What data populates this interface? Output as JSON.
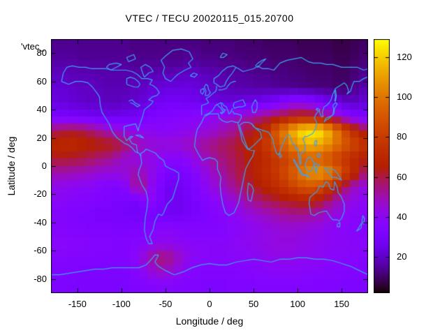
{
  "chart_data": {
    "type": "heatmap",
    "title": "VTEC / TECU 20020115_015.20700",
    "xlabel": "Longitude / deg",
    "ylabel": "Latitude / deg",
    "key_text": "'vtec_",
    "x_range": [
      -180,
      180
    ],
    "y_range": [
      -90,
      90
    ],
    "xticks": [
      -150,
      -100,
      -50,
      0,
      50,
      100,
      150
    ],
    "yticks": [
      80,
      60,
      40,
      20,
      0,
      -20,
      -40,
      -60,
      -80
    ],
    "grid_on": false,
    "legend_position": "top-left-truncated",
    "colorbar": {
      "ticks": [
        20,
        40,
        60,
        80,
        100,
        120
      ],
      "range": [
        2,
        129
      ],
      "palette": "gnuplot pm3d rgbformulae 7,5,15 (black-purple-red-orange-yellow)"
    },
    "coastline_color": "#3da2f0",
    "units": "TECU",
    "grid": {
      "lon_centers_start": -175,
      "lon_step": 10,
      "lat_centers_start": 85,
      "lat_step": -10,
      "values": [
        [
          14,
          14,
          14,
          14,
          14,
          14,
          14,
          14,
          14,
          13,
          13,
          13,
          13,
          13,
          13,
          13,
          13,
          12,
          12,
          12,
          12,
          11,
          11,
          11,
          10,
          10,
          10,
          10,
          9,
          9,
          9,
          9,
          8,
          8,
          9,
          10
        ],
        [
          16,
          16,
          16,
          15,
          15,
          15,
          15,
          15,
          15,
          14,
          14,
          14,
          14,
          14,
          14,
          15,
          15,
          14,
          14,
          13,
          13,
          13,
          12,
          12,
          12,
          11,
          11,
          11,
          10,
          10,
          10,
          10,
          9,
          9,
          10,
          12
        ],
        [
          19,
          19,
          18,
          18,
          18,
          17,
          17,
          17,
          17,
          17,
          17,
          18,
          18,
          18,
          19,
          20,
          20,
          19,
          18,
          17,
          16,
          16,
          15,
          14,
          14,
          13,
          13,
          12,
          12,
          11,
          11,
          11,
          10,
          10,
          12,
          14
        ],
        [
          22,
          22,
          21,
          20,
          20,
          19,
          18,
          18,
          18,
          19,
          20,
          22,
          23,
          24,
          24,
          24,
          23,
          21,
          20,
          19,
          18,
          17,
          17,
          16,
          16,
          15,
          14,
          14,
          13,
          13,
          12,
          12,
          11,
          11,
          14,
          17
        ],
        [
          24,
          23,
          22,
          21,
          20,
          20,
          19,
          19,
          20,
          21,
          23,
          26,
          28,
          29,
          29,
          28,
          27,
          25,
          24,
          23,
          23,
          24,
          25,
          27,
          29,
          32,
          36,
          40,
          40,
          37,
          33,
          28,
          24,
          21,
          20,
          22
        ],
        [
          32,
          31,
          30,
          29,
          28,
          27,
          26,
          26,
          27,
          28,
          30,
          32,
          34,
          35,
          36,
          37,
          38,
          39,
          41,
          43,
          45,
          47,
          50,
          53,
          56,
          60,
          63,
          66,
          68,
          67,
          62,
          55,
          47,
          40,
          35,
          33
        ],
        [
          58,
          60,
          61,
          60,
          57,
          53,
          49,
          46,
          44,
          42,
          41,
          40,
          39,
          39,
          40,
          41,
          42,
          44,
          46,
          49,
          52,
          56,
          61,
          67,
          75,
          90,
          102,
          115,
          124,
          127,
          125,
          115,
          100,
          85,
          72,
          62
        ],
        [
          70,
          71,
          71,
          69,
          67,
          66,
          65,
          63,
          58,
          52,
          48,
          46,
          45,
          45,
          46,
          48,
          50,
          53,
          55,
          58,
          60,
          63,
          67,
          72,
          79,
          87,
          96,
          105,
          112,
          115,
          113,
          107,
          99,
          91,
          84,
          78
        ],
        [
          62,
          62,
          61,
          60,
          58,
          56,
          54,
          50,
          46,
          44,
          43,
          42,
          40,
          38,
          38,
          40,
          44,
          48,
          52,
          55,
          58,
          61,
          65,
          68,
          72,
          77,
          82,
          87,
          91,
          93,
          92,
          88,
          82,
          76,
          71,
          66
        ],
        [
          50,
          50,
          49,
          48,
          47,
          45,
          44,
          44,
          46,
          50,
          48,
          42,
          36,
          31,
          31,
          33,
          37,
          43,
          48,
          52,
          56,
          60,
          64,
          69,
          73,
          78,
          85,
          93,
          101,
          107,
          109,
          105,
          95,
          82,
          70,
          58
        ],
        [
          42,
          41,
          40,
          39,
          38,
          36,
          35,
          34,
          38,
          50,
          52,
          40,
          32,
          28,
          28,
          30,
          34,
          39,
          44,
          48,
          52,
          56,
          60,
          64,
          68,
          72,
          77,
          83,
          88,
          90,
          87,
          78,
          66,
          56,
          48,
          44
        ],
        [
          39,
          38,
          37,
          36,
          35,
          34,
          33,
          32,
          31,
          30,
          34,
          38,
          32,
          27,
          27,
          29,
          32,
          35,
          38,
          41,
          44,
          48,
          52,
          55,
          58,
          60,
          62,
          64,
          66,
          66,
          62,
          56,
          50,
          45,
          42,
          40
        ],
        [
          36,
          35,
          34,
          33,
          32,
          31,
          31,
          30,
          30,
          29,
          29,
          30,
          29,
          28,
          28,
          29,
          31,
          33,
          35,
          37,
          39,
          41,
          44,
          46,
          48,
          50,
          52,
          53,
          53,
          52,
          50,
          46,
          43,
          40,
          38,
          37
        ],
        [
          36,
          36,
          35,
          35,
          34,
          34,
          34,
          33,
          33,
          33,
          34,
          36,
          38,
          38,
          37,
          36,
          35,
          35,
          35,
          36,
          37,
          38,
          40,
          41,
          43,
          44,
          45,
          45,
          44,
          43,
          42,
          40,
          39,
          38,
          37,
          36
        ],
        [
          38,
          38,
          37,
          37,
          36,
          36,
          36,
          35,
          35,
          36,
          38,
          40,
          41,
          41,
          40,
          39,
          38,
          38,
          38,
          38,
          39,
          40,
          41,
          42,
          43,
          44,
          44,
          44,
          43,
          42,
          41,
          40,
          39,
          39,
          38,
          38
        ],
        [
          36,
          36,
          35,
          35,
          35,
          34,
          34,
          34,
          35,
          38,
          45,
          52,
          56,
          54,
          48,
          42,
          39,
          38,
          37,
          37,
          38,
          38,
          39,
          40,
          41,
          42,
          42,
          42,
          41,
          41,
          40,
          39,
          38,
          37,
          37,
          36
        ],
        [
          34,
          34,
          34,
          33,
          33,
          33,
          33,
          33,
          34,
          36,
          40,
          45,
          48,
          46,
          42,
          38,
          36,
          35,
          35,
          35,
          35,
          36,
          36,
          37,
          38,
          38,
          38,
          38,
          38,
          37,
          37,
          36,
          36,
          35,
          35,
          34
        ],
        [
          33,
          33,
          32,
          32,
          32,
          32,
          32,
          32,
          32,
          33,
          34,
          35,
          36,
          36,
          35,
          34,
          34,
          33,
          33,
          33,
          34,
          34,
          34,
          35,
          35,
          35,
          35,
          35,
          35,
          35,
          34,
          34,
          34,
          33,
          33,
          33
        ]
      ]
    }
  }
}
